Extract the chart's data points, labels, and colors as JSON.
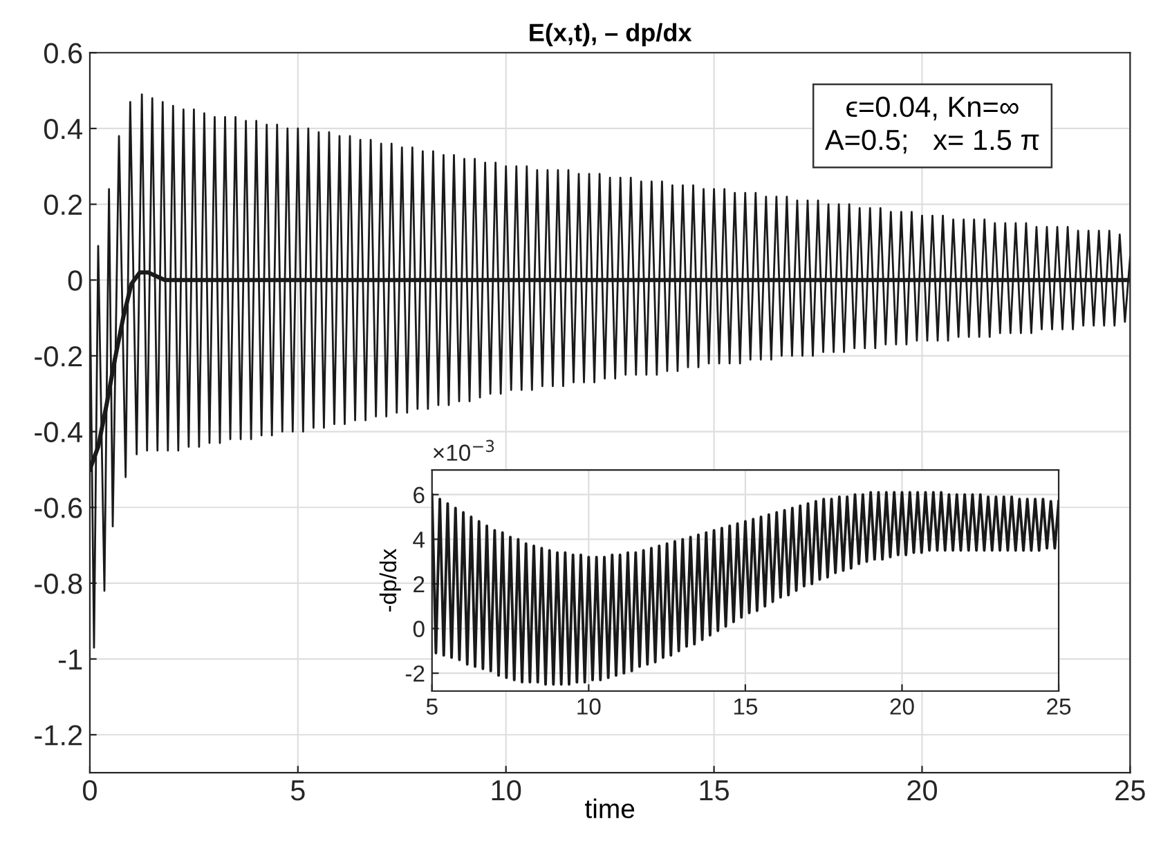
{
  "chart_data": [
    {
      "type": "line",
      "title": "E(x,t), – dp/dx",
      "xlabel": "time",
      "xlim": [
        0,
        25
      ],
      "xticks": [
        0,
        5,
        10,
        15,
        20,
        25
      ],
      "ylim": [
        -1.3,
        0.6
      ],
      "yticks": [
        -1.2,
        -1,
        -0.8,
        -0.6,
        -0.4,
        -0.2,
        0,
        0.2,
        0.4,
        0.6
      ],
      "grid": true,
      "line_style": "solid",
      "annotations": [
        "ϵ=0.04, Kn=∞\nA=0.5;   x= 1.5 π"
      ],
      "series": [
        {
          "color": "#1a1a1a",
          "x": [
            0,
            0.1,
            0.2,
            0.35,
            0.46,
            0.55,
            0.7,
            0.86,
            0.97,
            1.125,
            1.25,
            1.375,
            1.5,
            1.625,
            1.75,
            1.875,
            2,
            2.125,
            2.25,
            2.375,
            2.5,
            2.625,
            2.75,
            2.875,
            3,
            3.125,
            3.25,
            3.375,
            3.5,
            3.625,
            3.75,
            3.875,
            4,
            4.125,
            4.25,
            4.375,
            4.5,
            4.625,
            4.75,
            4.875,
            5,
            5.125,
            5.25,
            5.375,
            5.5,
            5.625,
            5.75,
            5.875,
            6,
            6.125,
            6.25,
            6.375,
            6.5,
            6.625,
            6.75,
            6.875,
            7,
            7.125,
            7.25,
            7.375,
            7.5,
            7.625,
            7.75,
            7.875,
            8,
            8.125,
            8.25,
            8.375,
            8.5,
            8.625,
            8.75,
            8.875,
            9,
            9.125,
            9.25,
            9.375,
            9.5,
            9.625,
            9.75,
            9.875,
            10,
            10.125,
            10.25,
            10.375,
            10.5,
            10.625,
            10.75,
            10.875,
            11,
            11.125,
            11.25,
            11.375,
            11.5,
            11.625,
            11.75,
            11.875,
            12,
            12.125,
            12.25,
            12.375,
            12.5,
            12.625,
            12.75,
            12.875,
            13,
            13.125,
            13.25,
            13.375,
            13.5,
            13.625,
            13.75,
            13.875,
            14,
            14.125,
            14.25,
            14.375,
            14.5,
            14.625,
            14.75,
            14.875,
            15,
            15.125,
            15.25,
            15.375,
            15.5,
            15.625,
            15.75,
            15.875,
            16,
            16.125,
            16.25,
            16.375,
            16.5,
            16.625,
            16.75,
            16.875,
            17,
            17.125,
            17.25,
            17.375,
            17.5,
            17.625,
            17.75,
            17.875,
            18,
            18.125,
            18.25,
            18.375,
            18.5,
            18.625,
            18.75,
            18.875,
            19,
            19.125,
            19.25,
            19.375,
            19.5,
            19.625,
            19.75,
            19.875,
            20,
            20.125,
            20.25,
            20.375,
            20.5,
            20.625,
            20.75,
            20.875,
            21,
            21.125,
            21.25,
            21.375,
            21.5,
            21.625,
            21.75,
            21.875,
            22,
            22.125,
            22.25,
            22.375,
            22.5,
            22.625,
            22.75,
            22.875,
            23,
            23.125,
            23.25,
            23.375,
            23.5,
            23.625,
            23.75,
            23.875,
            24,
            24.125,
            24.25,
            24.375,
            24.5,
            24.625,
            24.75,
            24.875,
            25
          ],
          "values": [
            0,
            -0.97,
            0.09,
            -0.82,
            0.24,
            -0.65,
            0.38,
            -0.52,
            0.47,
            -0.46,
            0.49,
            -0.45,
            0.48,
            -0.45,
            0.47,
            -0.45,
            0.46,
            -0.45,
            0.45,
            -0.44,
            0.45,
            -0.44,
            0.44,
            -0.43,
            0.43,
            -0.43,
            0.43,
            -0.42,
            0.43,
            -0.42,
            0.42,
            -0.42,
            0.42,
            -0.41,
            0.41,
            -0.41,
            0.41,
            -0.4,
            0.4,
            -0.4,
            0.4,
            -0.4,
            0.4,
            -0.39,
            0.39,
            -0.39,
            0.39,
            -0.38,
            0.38,
            -0.38,
            0.38,
            -0.37,
            0.37,
            -0.37,
            0.37,
            -0.36,
            0.36,
            -0.36,
            0.36,
            -0.35,
            0.35,
            -0.35,
            0.35,
            -0.34,
            0.34,
            -0.34,
            0.34,
            -0.33,
            0.33,
            -0.33,
            0.33,
            -0.32,
            0.32,
            -0.32,
            0.32,
            -0.31,
            0.31,
            -0.3,
            0.31,
            -0.3,
            0.3,
            -0.29,
            0.3,
            -0.29,
            0.3,
            -0.29,
            0.29,
            -0.28,
            0.29,
            -0.28,
            0.29,
            -0.28,
            0.29,
            -0.27,
            0.28,
            -0.27,
            0.28,
            -0.27,
            0.28,
            -0.26,
            0.27,
            -0.26,
            0.27,
            -0.25,
            0.27,
            -0.25,
            0.26,
            -0.25,
            0.26,
            -0.25,
            0.26,
            -0.24,
            0.25,
            -0.24,
            0.25,
            -0.23,
            0.25,
            -0.23,
            0.24,
            -0.22,
            0.24,
            -0.22,
            0.24,
            -0.22,
            0.23,
            -0.22,
            0.23,
            -0.21,
            0.23,
            -0.21,
            0.22,
            -0.21,
            0.22,
            -0.2,
            0.22,
            -0.2,
            0.21,
            -0.2,
            0.21,
            -0.2,
            0.21,
            -0.19,
            0.2,
            -0.19,
            0.2,
            -0.19,
            0.2,
            -0.18,
            0.19,
            -0.18,
            0.19,
            -0.18,
            0.19,
            -0.17,
            0.18,
            -0.17,
            0.18,
            -0.17,
            0.18,
            -0.16,
            0.17,
            -0.16,
            0.17,
            -0.16,
            0.17,
            -0.16,
            0.16,
            -0.15,
            0.16,
            -0.15,
            0.16,
            -0.15,
            0.16,
            -0.15,
            0.15,
            -0.14,
            0.15,
            -0.14,
            0.15,
            -0.14,
            0.15,
            -0.14,
            0.14,
            -0.13,
            0.14,
            -0.13,
            0.14,
            -0.13,
            0.14,
            -0.13,
            0.13,
            -0.12,
            0.13,
            -0.12,
            0.13,
            -0.12,
            0.13,
            -0.12,
            0.12,
            -0.11,
            0.06
          ]
        },
        {
          "color": "#1a1a1a",
          "x": [
            0,
            0.2,
            0.4,
            0.6,
            0.8,
            1.0,
            1.2,
            1.4,
            1.6,
            1.8,
            2,
            3,
            25
          ],
          "values": [
            -0.5,
            -0.44,
            -0.33,
            -0.21,
            -0.1,
            -0.01,
            0.02,
            0.02,
            0.01,
            0.0,
            0.0,
            0.0,
            0.0
          ]
        }
      ]
    },
    {
      "type": "line",
      "ylabel": "-dp/dx",
      "xlim": [
        5,
        25
      ],
      "xticks": [
        5,
        10,
        15,
        20,
        25
      ],
      "ylim": [
        -2.8,
        7.1
      ],
      "yticks": [
        -2,
        0,
        2,
        4,
        6
      ],
      "grid": true,
      "line_style": "solid",
      "annotations": [
        "×10$^{−3}$"
      ],
      "series": [
        {
          "color": "#1a1a1a",
          "x": [
            5,
            5.125,
            5.25,
            5.375,
            5.5,
            5.625,
            5.75,
            5.875,
            6,
            6.125,
            6.25,
            6.375,
            6.5,
            6.625,
            6.75,
            6.875,
            7,
            7.125,
            7.25,
            7.375,
            7.5,
            7.625,
            7.75,
            7.875,
            8,
            8.125,
            8.25,
            8.375,
            8.5,
            8.625,
            8.75,
            8.875,
            9,
            9.125,
            9.25,
            9.375,
            9.5,
            9.625,
            9.75,
            9.875,
            10,
            10.125,
            10.25,
            10.375,
            10.5,
            10.625,
            10.75,
            10.875,
            11,
            11.125,
            11.25,
            11.375,
            11.5,
            11.625,
            11.75,
            11.875,
            12,
            12.125,
            12.25,
            12.375,
            12.5,
            12.625,
            12.75,
            12.875,
            13,
            13.125,
            13.25,
            13.375,
            13.5,
            13.625,
            13.75,
            13.875,
            14,
            14.125,
            14.25,
            14.375,
            14.5,
            14.625,
            14.75,
            14.875,
            15,
            15.125,
            15.25,
            15.375,
            15.5,
            15.625,
            15.75,
            15.875,
            16,
            16.125,
            16.25,
            16.375,
            16.5,
            16.625,
            16.75,
            16.875,
            17,
            17.125,
            17.25,
            17.375,
            17.5,
            17.625,
            17.75,
            17.875,
            18,
            18.125,
            18.25,
            18.375,
            18.5,
            18.625,
            18.75,
            18.875,
            19,
            19.125,
            19.25,
            19.375,
            19.5,
            19.625,
            19.75,
            19.875,
            20,
            20.125,
            20.25,
            20.375,
            20.5,
            20.625,
            20.75,
            20.875,
            21,
            21.125,
            21.25,
            21.375,
            21.5,
            21.625,
            21.75,
            21.875,
            22,
            22.125,
            22.25,
            22.375,
            22.5,
            22.625,
            22.75,
            22.875,
            23,
            23.125,
            23.25,
            23.375,
            23.5,
            23.625,
            23.75,
            23.875,
            24,
            24.125,
            24.25,
            24.375,
            24.5,
            24.625,
            24.75,
            24.875,
            25
          ],
          "values": [
            6.0,
            -1.1,
            5.8,
            -1.2,
            5.6,
            -1.3,
            5.4,
            -1.4,
            5.2,
            -1.6,
            5.0,
            -1.7,
            4.8,
            -1.8,
            4.6,
            -1.9,
            4.4,
            -2.1,
            4.3,
            -2.2,
            4.1,
            -2.3,
            4.0,
            -2.4,
            3.8,
            -2.4,
            3.7,
            -2.4,
            3.6,
            -2.5,
            3.5,
            -2.5,
            3.4,
            -2.5,
            3.4,
            -2.5,
            3.3,
            -2.4,
            3.3,
            -2.4,
            3.2,
            -2.3,
            3.2,
            -2.3,
            3.2,
            -2.2,
            3.3,
            -2.1,
            3.3,
            -2.0,
            3.4,
            -1.9,
            3.4,
            -1.7,
            3.5,
            -1.6,
            3.6,
            -1.5,
            3.7,
            -1.3,
            3.8,
            -1.2,
            3.9,
            -1.0,
            4.0,
            -0.8,
            4.1,
            -0.7,
            4.2,
            -0.5,
            4.3,
            -0.3,
            4.4,
            -0.1,
            4.5,
            0.1,
            4.6,
            0.3,
            4.7,
            0.5,
            4.8,
            0.7,
            4.9,
            0.8,
            5.0,
            1.0,
            5.1,
            1.2,
            5.2,
            1.4,
            5.3,
            1.5,
            5.4,
            1.7,
            5.5,
            1.9,
            5.6,
            2.0,
            5.7,
            2.2,
            5.8,
            2.3,
            5.8,
            2.5,
            5.9,
            2.6,
            5.9,
            2.7,
            6.0,
            2.9,
            6.0,
            3.0,
            6.1,
            3.1,
            6.1,
            3.1,
            6.1,
            3.2,
            6.1,
            3.3,
            6.1,
            3.3,
            6.1,
            3.4,
            6.1,
            3.4,
            6.1,
            3.5,
            6.1,
            3.5,
            6.1,
            3.5,
            6.0,
            3.5,
            6.0,
            3.5,
            6.0,
            3.5,
            6.0,
            3.5,
            6.0,
            3.5,
            5.9,
            3.5,
            5.9,
            3.5,
            5.9,
            3.5,
            5.9,
            3.5,
            5.8,
            3.5,
            5.8,
            3.5,
            5.8,
            3.5,
            5.8,
            3.6,
            5.7,
            3.6,
            5.7
          ]
        }
      ]
    }
  ]
}
